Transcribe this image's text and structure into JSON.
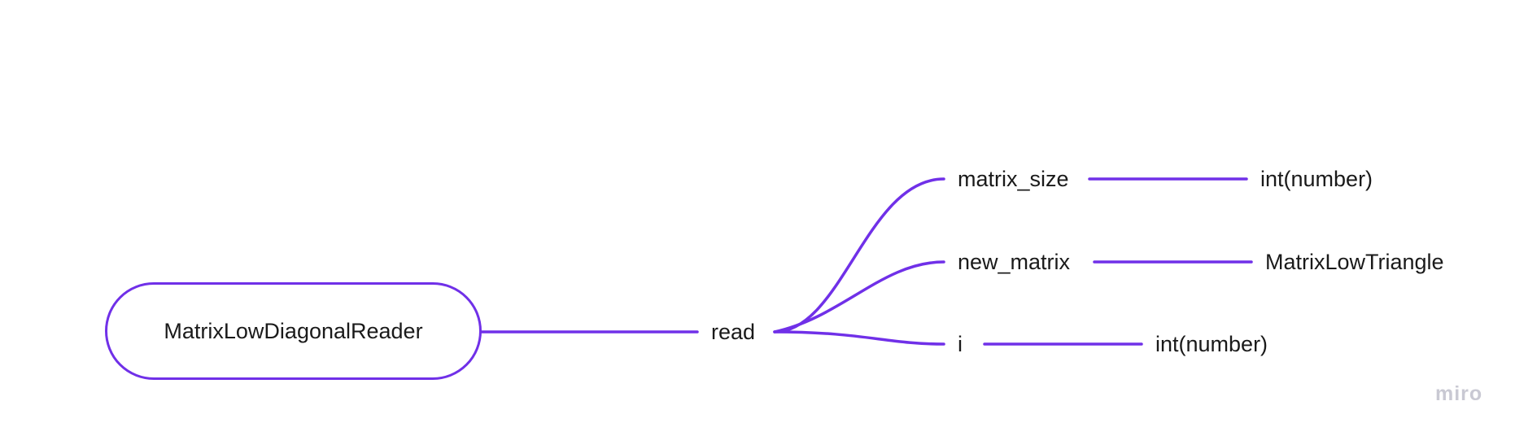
{
  "colors": {
    "accent": "#7030e8",
    "text": "#1a1a1a",
    "watermark": "#c9c9d3",
    "background": "#ffffff"
  },
  "mindmap": {
    "root": {
      "label": "MatrixLowDiagonalReader"
    },
    "method": {
      "label": "read"
    },
    "branches": [
      {
        "name": "matrix_size",
        "type": "int(number)"
      },
      {
        "name": "new_matrix",
        "type": "MatrixLowTriangle"
      },
      {
        "name": "i",
        "type": "int(number)"
      }
    ]
  },
  "watermark": {
    "text": "miro"
  }
}
